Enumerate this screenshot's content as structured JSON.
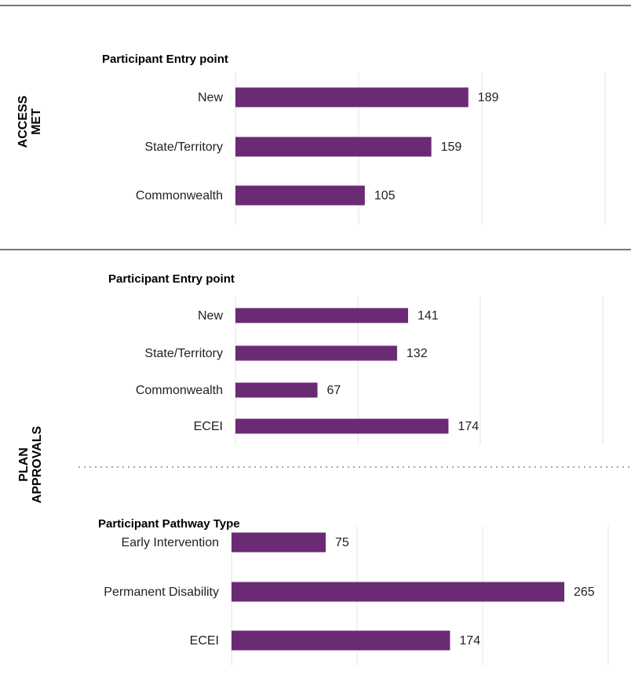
{
  "sections": [
    {
      "label": [
        "ACCESS",
        "MET"
      ]
    },
    {
      "label": [
        "PLAN",
        "APPROVALS"
      ]
    }
  ],
  "chart_data": [
    {
      "type": "bar",
      "orientation": "horizontal",
      "title": "Participant Entry point",
      "categories": [
        "New",
        "State/Territory",
        "Commonwealth"
      ],
      "values": [
        189,
        159,
        105
      ],
      "color": "#6b2a74",
      "xlim": [
        0,
        300
      ],
      "xticks": [
        0,
        100,
        200,
        300
      ],
      "grid": true
    },
    {
      "type": "bar",
      "orientation": "horizontal",
      "title": "Participant Entry point",
      "categories": [
        "New",
        "State/Territory",
        "Commonwealth",
        "ECEI"
      ],
      "values": [
        141,
        132,
        67,
        174
      ],
      "color": "#6b2a74",
      "xlim": [
        0,
        300
      ],
      "xticks": [
        0,
        100,
        200,
        300
      ],
      "grid": true
    },
    {
      "type": "bar",
      "orientation": "horizontal",
      "title": "Participant Pathway Type",
      "categories": [
        "Early Intervention",
        "Permanent Disability",
        "ECEI"
      ],
      "values": [
        75,
        265,
        174
      ],
      "color": "#6b2a74",
      "xlim": [
        0,
        300
      ],
      "xticks": [
        0,
        100,
        200,
        300
      ],
      "grid": true
    }
  ]
}
